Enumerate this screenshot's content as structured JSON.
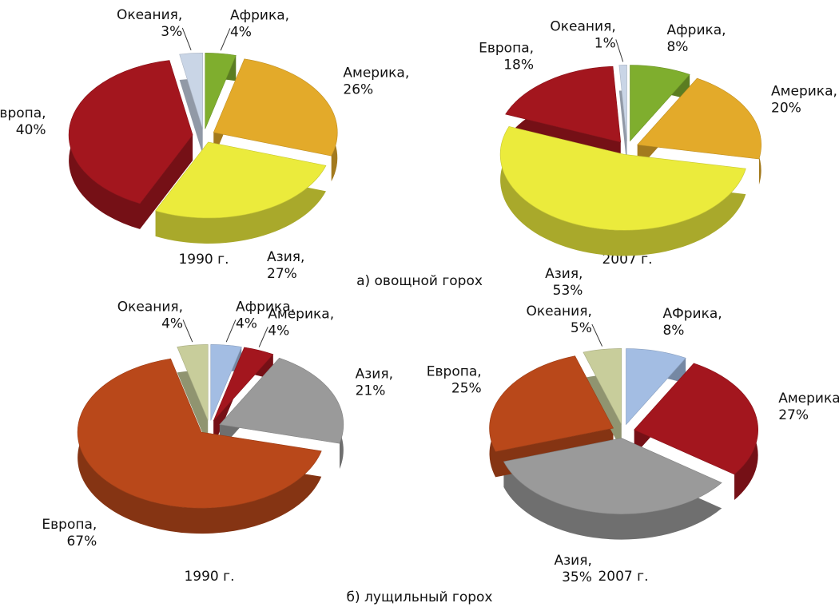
{
  "chart_data": [
    {
      "type": "pie",
      "title": "1990 г.",
      "categories": [
        "Африка,",
        "Америка,",
        "Азия,",
        "Европа,",
        "Океания,"
      ],
      "values": [
        4,
        26,
        27,
        40,
        3
      ],
      "value_labels": [
        "4%",
        "26%",
        "27%",
        "40%",
        "3%"
      ],
      "colors": [
        "#7fae2e",
        "#e3aa2a",
        "#ebeb3c",
        "#a3161e",
        "#c9d5e6"
      ]
    },
    {
      "type": "pie",
      "title": "2007 г.",
      "categories": [
        "Африка,",
        "Америка,",
        "Азия,",
        "Европа,",
        "Океания,"
      ],
      "values": [
        8,
        20,
        53,
        18,
        1
      ],
      "value_labels": [
        "8%",
        "20%",
        "53%",
        "18%",
        "1%"
      ],
      "colors": [
        "#7fae2e",
        "#e3aa2a",
        "#ebeb3c",
        "#a3161e",
        "#c9d5e6"
      ]
    },
    {
      "type": "pie",
      "title": "1990 г.",
      "categories": [
        "Африка,",
        "Америка,",
        "Азия,",
        "Европа,",
        "Океания,"
      ],
      "values": [
        4,
        4,
        21,
        67,
        4
      ],
      "value_labels": [
        "4%",
        "4%",
        "21%",
        "67%",
        "4%"
      ],
      "colors": [
        "#a3bde3",
        "#a3161e",
        "#9a9a9a",
        "#b9481a",
        "#c8cd9b"
      ]
    },
    {
      "type": "pie",
      "title": "2007 г.",
      "categories": [
        "АФрика,",
        "Америка,",
        "Азия,",
        "Европа,",
        "Океания,"
      ],
      "values": [
        8,
        27,
        35,
        25,
        5
      ],
      "value_labels": [
        "8%",
        "27%",
        "35%",
        "25%",
        "5%"
      ],
      "colors": [
        "#a3bde3",
        "#a3161e",
        "#9a9a9a",
        "#b9481a",
        "#c8cd9b"
      ]
    }
  ],
  "captions": [
    "а) овощной горох",
    "б) лущильный горох"
  ]
}
